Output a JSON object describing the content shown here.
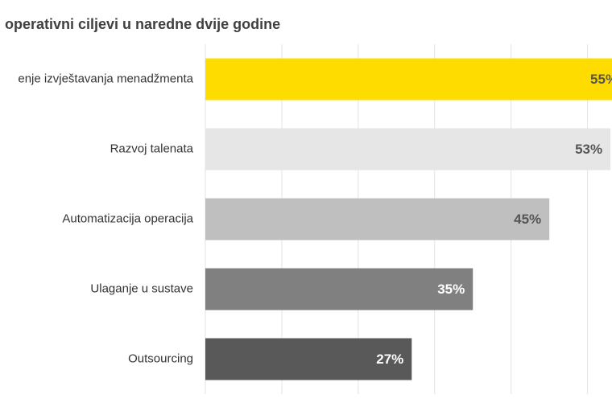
{
  "chart_data": {
    "type": "hbar",
    "title": "operativni ciljevi u naredne dvije godine",
    "categories": [
      "enje izvještavanja menadžmenta",
      "Razvoj talenata",
      "Automatizacija operacija",
      "Ulaganje u sustave",
      "Outsourcing"
    ],
    "values": [
      55,
      53,
      45,
      35,
      27
    ],
    "value_labels": [
      "55%",
      "53%",
      "45%",
      "35%",
      "27%"
    ],
    "colors": [
      "#ffdc00",
      "#e6e6e6",
      "#bfbfbf",
      "#808080",
      "#595959"
    ],
    "label_colors": [
      "#555555",
      "#555555",
      "#555555",
      "#ffffff",
      "#ffffff"
    ],
    "xlim": [
      0,
      53.2
    ],
    "xticks": [
      0,
      10,
      20,
      30,
      40,
      50
    ],
    "grid": true
  }
}
